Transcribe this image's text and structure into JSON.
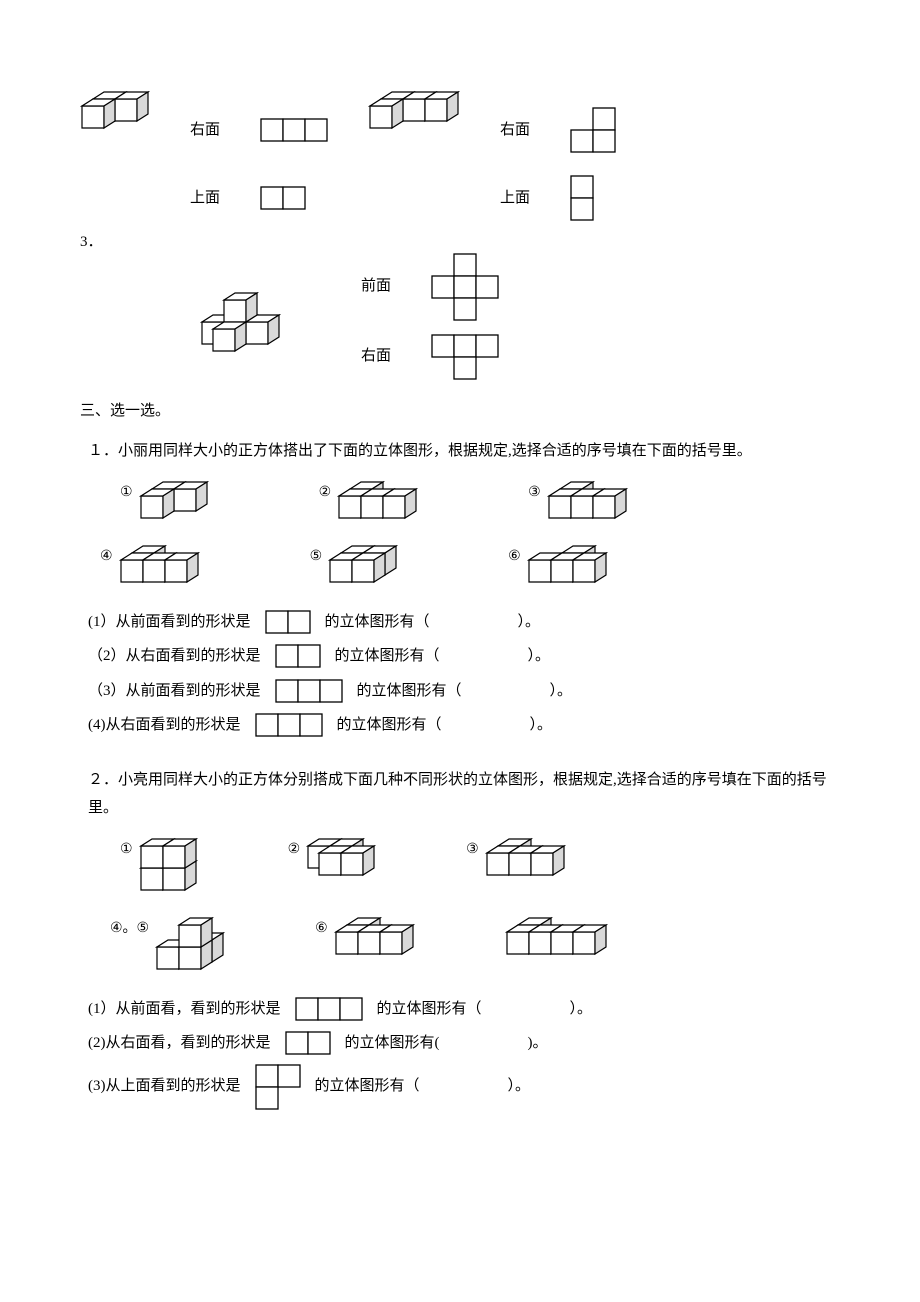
{
  "stroke": "#000000",
  "fill_light": "#ffffff",
  "fill_shade": "#d9d9d9",
  "cell": 22,
  "labels": {
    "front": "前面",
    "right": "右面",
    "top": "上面"
  },
  "topBlock": {
    "left": {
      "rightLabel": "右面",
      "rightShape": {
        "type": "grid",
        "cols": 3,
        "rows": 1
      },
      "topLabel": "上面",
      "topShape": {
        "type": "grid",
        "cols": 2,
        "rows": 1
      }
    },
    "right": {
      "rightLabel": "右面",
      "rightShape": {
        "type": "l2x2_tl_missing"
      },
      "topLabel": "上面",
      "topShape": {
        "type": "grid",
        "cols": 1,
        "rows": 2
      }
    }
  },
  "q3": {
    "num": "3．",
    "frontLabel": "前面",
    "frontShape": {
      "type": "plus"
    },
    "rightLabel": "右面",
    "rightShape": {
      "type": "t_down"
    }
  },
  "sec3": "三、选一选。",
  "p1": {
    "stem": "１．小丽用同样大小的正方体搭出了下面的立体图形，根据规定,选择合适的序号填在下面的括号里。",
    "opts": [
      "①",
      "②",
      "③",
      "④",
      "⑤",
      "⑥"
    ],
    "lines": [
      {
        "pre": "(1）从前面看到的形状是",
        "shape": {
          "type": "grid",
          "cols": 2,
          "rows": 1
        },
        "post": "的立体图形有（",
        "end": "）。"
      },
      {
        "pre": "（2）从右面看到的形状是",
        "shape": {
          "type": "grid",
          "cols": 2,
          "rows": 1
        },
        "post": "的立体图形有（",
        "end": "）。"
      },
      {
        "pre": "（3）从前面看到的形状是",
        "shape": {
          "type": "grid",
          "cols": 3,
          "rows": 1
        },
        "post": "的立体图形有（",
        "end": "）。"
      },
      {
        "pre": "(4)从右面看到的形状是",
        "shape": {
          "type": "grid",
          "cols": 3,
          "rows": 1
        },
        "post": "的立体图形有（",
        "end": "）。"
      }
    ]
  },
  "p2": {
    "stem": "２．小亮用同样大小的正方体分别搭成下面几种不同形状的立体图形，根据规定,选择合适的序号填在下面的括号里。",
    "opts": [
      "①",
      "②",
      "③",
      "④。⑤",
      "⑥"
    ],
    "lines": [
      {
        "pre": "(1）从前面看，看到的形状是",
        "shape": {
          "type": "grid",
          "cols": 3,
          "rows": 1
        },
        "post": "的立体图形有（",
        "end": "）。"
      },
      {
        "pre": "(2)从右面看，看到的形状是",
        "shape": {
          "type": "grid",
          "cols": 2,
          "rows": 1
        },
        "post": "的立体图形有(",
        "end": ")。"
      },
      {
        "pre": "(3)从上面看到的形状是",
        "shape": {
          "type": "l2x2_br_missing"
        },
        "post": "的立体图形有（",
        "end": "）。"
      }
    ]
  }
}
